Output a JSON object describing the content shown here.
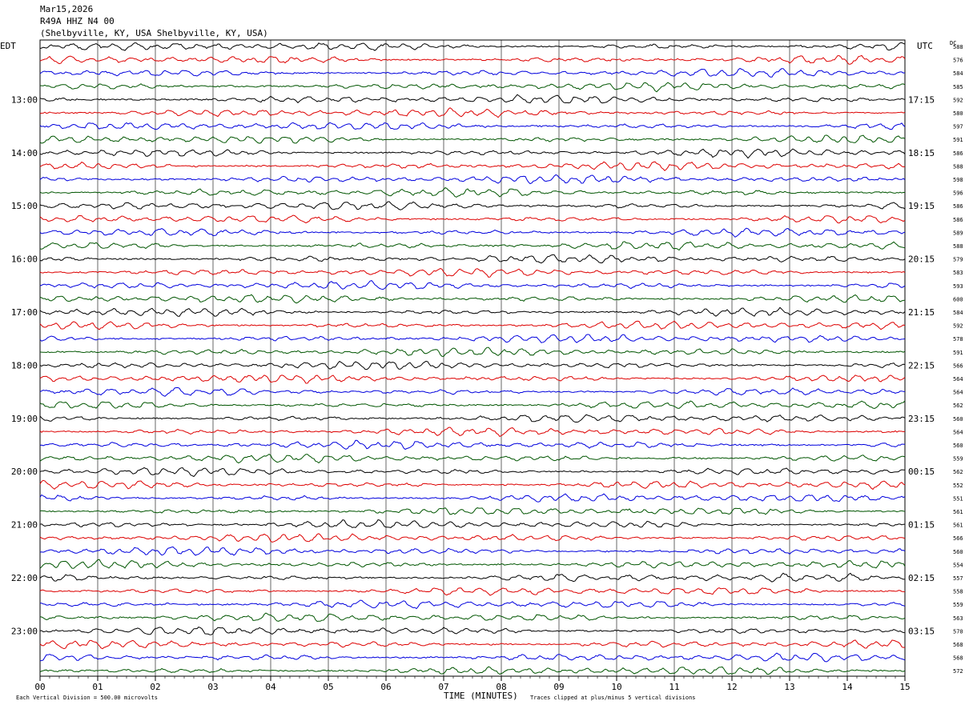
{
  "header": {
    "date": "Mar15,2026",
    "station": "R49A HHZ N4 00",
    "location": "(Shelbyville, KY, USA Shelbyville, KY, USA)"
  },
  "chart_data": {
    "type": "line",
    "left_timezone": "EDT",
    "right_timezone": "UTC",
    "dc_label": "DC",
    "xlabel": "TIME (MINUTES)",
    "x_ticks": [
      "00",
      "01",
      "02",
      "03",
      "04",
      "05",
      "06",
      "07",
      "08",
      "09",
      "10",
      "11",
      "12",
      "13",
      "14",
      "15"
    ],
    "xlim": [
      0,
      15
    ],
    "trace_colors": [
      "#000000",
      "#dd0000",
      "#0000dd",
      "#005500"
    ],
    "left_hour_labels": [
      "13:00",
      "14:00",
      "15:00",
      "16:00",
      "17:00",
      "18:00",
      "19:00",
      "20:00",
      "21:00",
      "22:00",
      "23:00"
    ],
    "right_hour_labels": [
      "17:15",
      "18:15",
      "19:15",
      "20:15",
      "21:15",
      "22:15",
      "23:15",
      "00:15",
      "01:15",
      "02:15",
      "03:15"
    ],
    "dc_offsets": [
      588,
      576,
      584,
      585,
      592,
      580,
      597,
      591,
      586,
      588,
      598,
      596,
      586,
      586,
      589,
      588,
      579,
      583,
      593,
      600,
      584,
      592,
      578,
      591,
      566,
      564,
      564,
      562,
      560,
      564,
      560,
      559,
      562,
      552,
      551,
      561,
      561,
      566,
      560,
      554,
      557,
      558,
      559,
      563,
      570,
      568,
      568,
      572
    ],
    "footer_left": "Each Vertical Division =  500.00 microvolts",
    "footer_right": "Traces clipped at plus/minus 5 vertical divisions"
  }
}
